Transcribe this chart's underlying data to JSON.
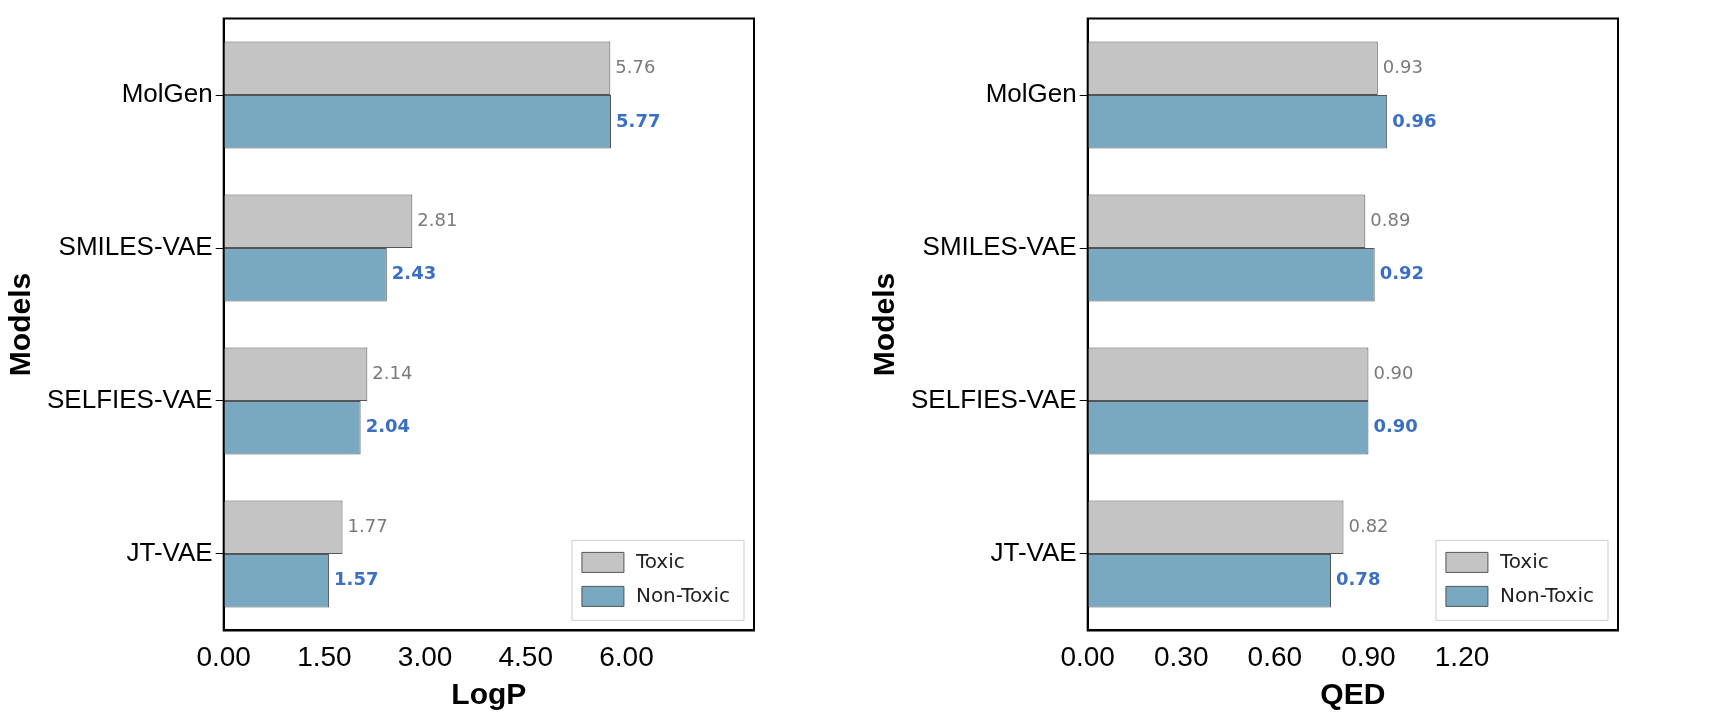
{
  "chart_data": [
    {
      "type": "bar",
      "orientation": "horizontal",
      "xlabel": "LogP",
      "ylabel": "Models",
      "categories": [
        "MolGen",
        "SMILES-VAE",
        "SELFIES-VAE",
        "JT-VAE"
      ],
      "series": [
        {
          "name": "Toxic",
          "color": "#c4c4c4",
          "values": [
            5.76,
            2.81,
            2.14,
            1.77
          ]
        },
        {
          "name": "Non-Toxic",
          "color": "#78a9c0",
          "values": [
            5.77,
            2.43,
            2.04,
            1.57
          ]
        }
      ],
      "xlim": [
        0,
        7.9
      ],
      "xticks": [
        {
          "value": 0,
          "label": "0.00"
        },
        {
          "value": 1.5,
          "label": "1.50"
        },
        {
          "value": 3,
          "label": "3.00"
        },
        {
          "value": 4.5,
          "label": "4.50"
        },
        {
          "value": 6,
          "label": "6.00"
        }
      ],
      "data_labels": true,
      "legend": "bottom right",
      "grid": false
    },
    {
      "type": "bar",
      "orientation": "horizontal",
      "xlabel": "QED",
      "ylabel": "Models",
      "categories": [
        "MolGen",
        "SMILES-VAE",
        "SELFIES-VAE",
        "JT-VAE"
      ],
      "series": [
        {
          "name": "Toxic",
          "color": "#c4c4c4",
          "values": [
            0.93,
            0.89,
            0.9,
            0.82
          ],
          "value_labels": [
            "0.93",
            "0.89",
            "0.90",
            "0.82"
          ]
        },
        {
          "name": "Non-Toxic",
          "color": "#78a9c0",
          "values": [
            0.96,
            0.92,
            0.9,
            0.78
          ],
          "value_labels": [
            "0.96",
            "0.92",
            "0.90",
            "0.78"
          ]
        }
      ],
      "xlim": [
        0,
        1.7
      ],
      "xticks": [
        {
          "value": 0,
          "label": "0.00"
        },
        {
          "value": 0.3,
          "label": "0.30"
        },
        {
          "value": 0.6,
          "label": "0.60"
        },
        {
          "value": 0.9,
          "label": "0.90"
        },
        {
          "value": 1.2,
          "label": "1.20"
        }
      ],
      "legend": "bottom right",
      "grid": false
    }
  ]
}
